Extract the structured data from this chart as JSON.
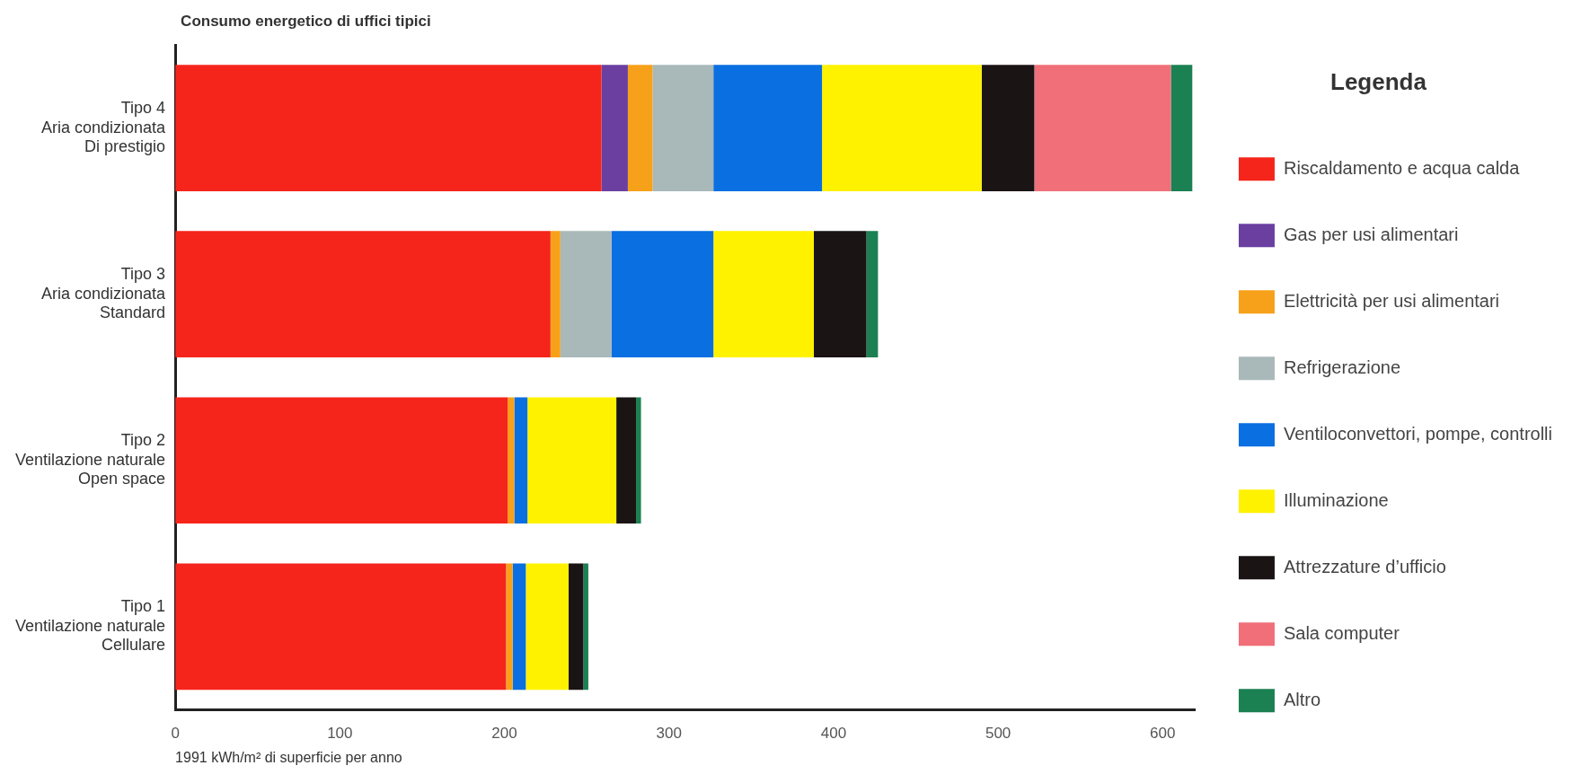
{
  "chart_data": {
    "type": "bar",
    "orientation": "horizontal",
    "stacked": true,
    "title": "Consumo energetico di uffici tipici",
    "xlabel": "1991 kWh/m² di superficie per anno",
    "legend_title": "Legenda",
    "legend": "right",
    "grid": false,
    "categories": [
      "Tipo 4\nAria condizionata\nDi prestigio",
      "Tipo 3\nAria condizionata\nStandard",
      "Tipo 2\nVentilazione naturale\nOpen space",
      "Tipo 1\nVentilazione naturale\nCellulare"
    ],
    "xlim": [
      0,
      620
    ],
    "xticks": [
      0,
      100,
      200,
      300,
      400,
      500,
      600
    ],
    "series": [
      {
        "name": "Riscaldamento e acqua calda",
        "color": "#f5251c",
        "values": [
          259,
          228,
          202,
          201
        ]
      },
      {
        "name": "Gas per usi alimentari",
        "color": "#6a3fa0",
        "values": [
          16,
          null,
          null,
          null
        ]
      },
      {
        "name": "Elettricità per usi alimentari",
        "color": "#f7a11a",
        "values": [
          15,
          6,
          4,
          4
        ]
      },
      {
        "name": "Refrigerazione",
        "color": "#a9b8b8",
        "values": [
          37,
          31,
          null,
          null
        ]
      },
      {
        "name": "Ventiloconvettori, pompe, controlli",
        "color": "#0a6fe0",
        "values": [
          66,
          62,
          8,
          8
        ]
      },
      {
        "name": "Illuminazione",
        "color": "#fff200",
        "values": [
          97,
          61,
          54,
          26
        ]
      },
      {
        "name": "Attrezzature d’ufficio",
        "color": "#1a1414",
        "values": [
          32,
          32,
          12,
          9
        ]
      },
      {
        "name": "Sala computer",
        "color": "#f06f78",
        "values": [
          83,
          null,
          null,
          null
        ]
      },
      {
        "name": "Altro",
        "color": "#1b8052",
        "values": [
          13,
          7,
          3,
          3
        ]
      }
    ]
  }
}
